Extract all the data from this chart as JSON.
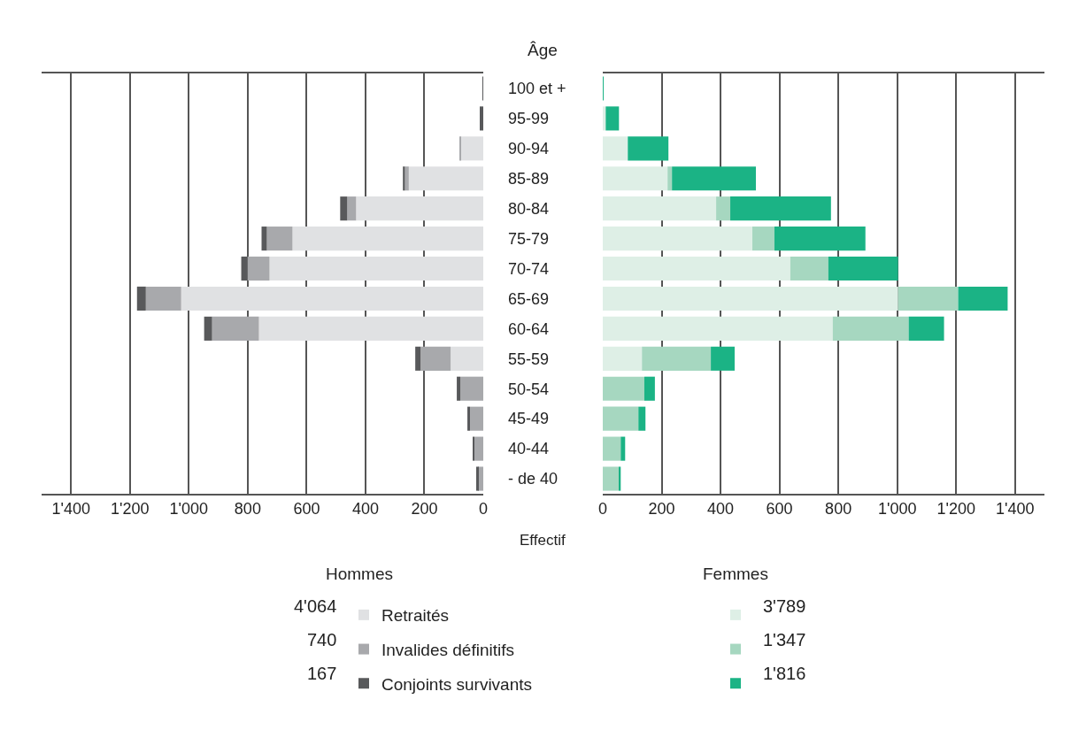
{
  "chart_data": [
    {
      "type": "bar",
      "orientation": "horizontal",
      "stacked": true,
      "ylabel": "Âge",
      "xlabel": "Effectif",
      "legend_title": "Hommes",
      "legend": "bottom",
      "grid": "x",
      "categories": [
        "100 et +",
        "95-99",
        "90-94",
        "85-89",
        "80-84",
        "75-79",
        "70-74",
        "65-69",
        "60-64",
        "55-59",
        "50-54",
        "45-49",
        "40-44",
        "- de 40"
      ],
      "series": [
        {
          "name": "Retraités",
          "color": "#e0e1e3",
          "values": [
            0,
            0,
            78,
            253,
            432,
            648,
            726,
            1026,
            762,
            111,
            0,
            0,
            0,
            0
          ]
        },
        {
          "name": "Invalides définitifs",
          "color": "#a8a9ac",
          "values": [
            0,
            0,
            2,
            13,
            30,
            87,
            75,
            120,
            159,
            102,
            78,
            45,
            30,
            18
          ]
        },
        {
          "name": "Conjoints survivants",
          "color": "#58595b",
          "values": [
            3,
            12,
            0,
            7,
            24,
            18,
            21,
            30,
            27,
            18,
            12,
            9,
            6,
            6
          ]
        }
      ],
      "annotations": [
        "4'064",
        "740",
        "167"
      ],
      "xlim": [
        1500,
        0
      ],
      "xticks": [
        {
          "value": 1400,
          "label": "1'400"
        },
        {
          "value": 1200,
          "label": "1'200"
        },
        {
          "value": 1000,
          "label": "1'000"
        },
        800,
        600,
        400,
        200,
        0
      ]
    },
    {
      "type": "bar",
      "orientation": "horizontal",
      "stacked": true,
      "legend_title": "Femmes",
      "legend": "bottom",
      "grid": "x",
      "tick_labels": "x",
      "categories": [
        null,
        null,
        null,
        null,
        null,
        null,
        null,
        null,
        null,
        null,
        null,
        null,
        null,
        null
      ],
      "series": [
        {
          "color": "#deefe6",
          "values": [
            0,
            10,
            85,
            220,
            385,
            508,
            637,
            1003,
            781,
            133,
            0,
            0,
            0,
            0
          ]
        },
        {
          "color": "#a6d7c0",
          "values": [
            0,
            null,
            null,
            15,
            48,
            75,
            129,
            204,
            258,
            234,
            141,
            121,
            61,
            55
          ]
        },
        {
          "color": "#1bb385",
          "values": [
            2,
            45,
            138,
            285,
            342,
            309,
            237,
            168,
            120,
            81,
            36,
            24,
            15,
            6
          ]
        }
      ],
      "annotations": [
        "3'789",
        "1'347",
        "1'816"
      ],
      "xlim": [
        0,
        1500
      ],
      "xticks": [
        0,
        200,
        400,
        600,
        800,
        {
          "value": 1000,
          "label": "1'000"
        },
        {
          "value": 1200,
          "label": "1'200"
        },
        {
          "value": 1400,
          "label": "1'400"
        }
      ]
    }
  ]
}
